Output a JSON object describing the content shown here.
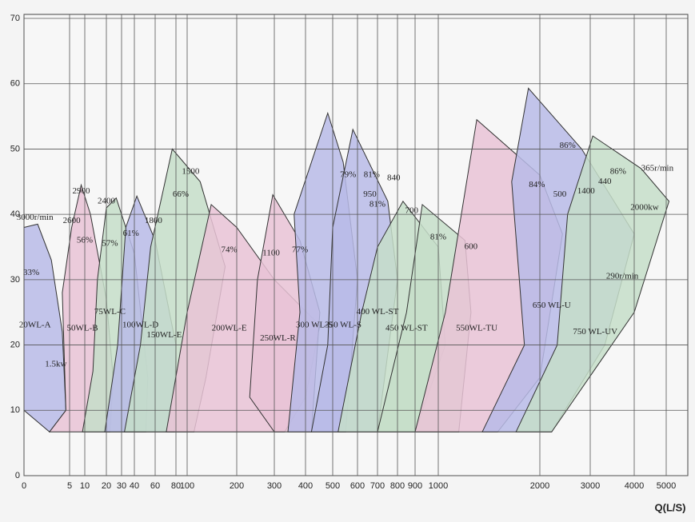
{
  "chart_data": {
    "type": "pump-map",
    "xlabel": "Q(L/S)",
    "xticks": [
      0,
      5,
      10,
      20,
      30,
      40,
      60,
      80,
      100,
      200,
      300,
      400,
      500,
      600,
      700,
      800,
      900,
      1000,
      2000,
      3000,
      4000,
      5000
    ],
    "ylim": [
      0,
      70
    ],
    "yticks": [
      0,
      10,
      20,
      30,
      40,
      50,
      60,
      70
    ],
    "grid": true,
    "regions": [
      {
        "name": "20WL-A",
        "color": "#b9bbe8",
        "label_at": [
          1.2,
          23
        ],
        "outline": [
          [
            0,
            38
          ],
          [
            1.5,
            38.5
          ],
          [
            3,
            33
          ],
          [
            4.2,
            22
          ],
          [
            4.6,
            10
          ],
          [
            2.8,
            6.7
          ],
          [
            0,
            10
          ]
        ]
      },
      {
        "name": "50WL-B",
        "color": "#e9c3d6",
        "label_at": [
          9,
          22.5
        ],
        "outline": [
          [
            2.8,
            6.7
          ],
          [
            4.6,
            10
          ],
          [
            4.2,
            28
          ],
          [
            5.5,
            38
          ],
          [
            8.5,
            44.5
          ],
          [
            12,
            40
          ],
          [
            20,
            27
          ],
          [
            24,
            15
          ],
          [
            22,
            6.7
          ]
        ]
      },
      {
        "name": "75WL-C",
        "color": "#c6dec9",
        "label_at": [
          22,
          25
        ],
        "outline": [
          [
            9,
            6.7
          ],
          [
            13,
            16
          ],
          [
            15,
            30
          ],
          [
            20,
            41
          ],
          [
            26,
            42.5
          ],
          [
            40,
            34
          ],
          [
            52,
            15
          ],
          [
            50,
            6.7
          ]
        ]
      },
      {
        "name": "100WL-D",
        "color": "#b9bbe8",
        "label_at": [
          45,
          23
        ],
        "outline": [
          [
            19,
            6.7
          ],
          [
            27,
            20
          ],
          [
            33,
            38
          ],
          [
            42,
            42.8
          ],
          [
            60,
            36
          ],
          [
            80,
            20
          ],
          [
            78,
            6.7
          ]
        ]
      },
      {
        "name": "150WL-E",
        "color": "#c6dec9",
        "label_at": [
          68,
          21.5
        ],
        "outline": [
          [
            32,
            6.7
          ],
          [
            45,
            20
          ],
          [
            55,
            35
          ],
          [
            76,
            50
          ],
          [
            120,
            45
          ],
          [
            170,
            32
          ],
          [
            130,
            15
          ],
          [
            110,
            6.7
          ]
        ]
      },
      {
        "name": "200WL-E",
        "color": "#e9c3d6",
        "label_at": [
          180,
          22.5
        ],
        "outline": [
          [
            70,
            6.7
          ],
          [
            100,
            25
          ],
          [
            140,
            41.5
          ],
          [
            200,
            38
          ],
          [
            300,
            30
          ],
          [
            450,
            23
          ],
          [
            400,
            12
          ],
          [
            330,
            6.7
          ]
        ]
      },
      {
        "name": "250WL-R",
        "color": "#e9c3d6",
        "label_at": [
          310,
          21
        ],
        "outline": [
          [
            230,
            12
          ],
          [
            250,
            30
          ],
          [
            295,
            43
          ],
          [
            380,
            36
          ],
          [
            450,
            25
          ],
          [
            420,
            6.7
          ],
          [
            300,
            6.7
          ]
        ]
      },
      {
        "name": "300 WL-S",
        "color": "#b9bbe8",
        "label_at": [
          430,
          23
        ],
        "outline": [
          [
            340,
            6.7
          ],
          [
            380,
            25
          ],
          [
            360,
            40
          ],
          [
            480,
            55.5
          ],
          [
            540,
            48
          ],
          [
            600,
            30
          ],
          [
            550,
            6.7
          ]
        ]
      },
      {
        "name": "350 WL-S",
        "color": "#b9bbe8",
        "label_at": [
          540,
          23
        ],
        "outline": [
          [
            420,
            6.7
          ],
          [
            480,
            20
          ],
          [
            500,
            38
          ],
          [
            580,
            53
          ],
          [
            750,
            42
          ],
          [
            800,
            30
          ],
          [
            700,
            6.7
          ]
        ]
      },
      {
        "name": "400 WL-ST",
        "color": "#c6dec9",
        "label_at": [
          700,
          25
        ],
        "outline": [
          [
            520,
            6.7
          ],
          [
            620,
            25
          ],
          [
            700,
            35
          ],
          [
            830,
            42
          ],
          [
            1000,
            35
          ],
          [
            1050,
            20
          ],
          [
            900,
            6.7
          ]
        ]
      },
      {
        "name": "450 WL-ST",
        "color": "#c6dec9",
        "label_at": [
          850,
          22.5
        ],
        "outline": [
          [
            700,
            6.7
          ],
          [
            850,
            25
          ],
          [
            930,
            41.5
          ],
          [
            1200,
            36
          ],
          [
            1250,
            25
          ],
          [
            1150,
            6.7
          ]
        ]
      },
      {
        "name": "550WL-TU",
        "color": "#e9c3d6",
        "label_at": [
          1300,
          22.5
        ],
        "outline": [
          [
            900,
            6.7
          ],
          [
            1050,
            25
          ],
          [
            1300,
            54.5
          ],
          [
            2000,
            46
          ],
          [
            2400,
            37
          ],
          [
            2000,
            15
          ],
          [
            1500,
            6.7
          ]
        ]
      },
      {
        "name": "650 WL-U",
        "color": "#b9bbe8",
        "label_at": [
          2200,
          26
        ],
        "outline": [
          [
            1350,
            6.7
          ],
          [
            1800,
            20
          ],
          [
            1650,
            45
          ],
          [
            1850,
            59.3
          ],
          [
            2800,
            50
          ],
          [
            4000,
            37
          ],
          [
            3300,
            20
          ],
          [
            2200,
            6.7
          ]
        ]
      },
      {
        "name": "750 WL-UV",
        "color": "#c6dec9",
        "label_at": [
          3100,
          22
        ],
        "outline": [
          [
            1700,
            6.7
          ],
          [
            2300,
            20
          ],
          [
            2500,
            40
          ],
          [
            3050,
            52
          ],
          [
            4200,
            47
          ],
          [
            5100,
            42
          ],
          [
            4000,
            25
          ],
          [
            2200,
            6.7
          ]
        ]
      }
    ],
    "annotations": [
      {
        "text": "3000r/min",
        "at": [
          1.2,
          39.5
        ]
      },
      {
        "text": "33%",
        "at": [
          0.8,
          31
        ]
      },
      {
        "text": "1.5kw",
        "at": [
          3.5,
          17
        ]
      },
      {
        "text": "2900",
        "at": [
          8.5,
          43.5
        ]
      },
      {
        "text": "2600",
        "at": [
          5.5,
          39
        ]
      },
      {
        "text": "56%",
        "at": [
          10,
          36
        ]
      },
      {
        "text": "2400",
        "at": [
          20,
          42
        ]
      },
      {
        "text": "57%",
        "at": [
          22,
          35.5
        ]
      },
      {
        "text": "61%",
        "at": [
          37,
          37
        ]
      },
      {
        "text": "1800",
        "at": [
          58,
          39
        ]
      },
      {
        "text": "1500",
        "at": [
          105,
          46.5
        ]
      },
      {
        "text": "66%",
        "at": [
          88,
          43
        ]
      },
      {
        "text": "74%",
        "at": [
          180,
          34.5
        ]
      },
      {
        "text": "1100",
        "at": [
          290,
          34
        ]
      },
      {
        "text": "77%",
        "at": [
          380,
          34.5
        ]
      },
      {
        "text": "79%",
        "at": [
          560,
          46
        ]
      },
      {
        "text": "81%",
        "at": [
          670,
          46
        ]
      },
      {
        "text": "950",
        "at": [
          660,
          43
        ]
      },
      {
        "text": "840",
        "at": [
          780,
          45.5
        ]
      },
      {
        "text": "81%",
        "at": [
          700,
          41.5
        ]
      },
      {
        "text": "700",
        "at": [
          880,
          40.5
        ]
      },
      {
        "text": "81%",
        "at": [
          1000,
          36.5
        ]
      },
      {
        "text": "600",
        "at": [
          1250,
          35
        ]
      },
      {
        "text": "84%",
        "at": [
          1960,
          44.5
        ]
      },
      {
        "text": "86%",
        "at": [
          2500,
          50.5
        ]
      },
      {
        "text": "500",
        "at": [
          2350,
          43
        ]
      },
      {
        "text": "1400",
        "at": [
          2900,
          43.5
        ]
      },
      {
        "text": "86%",
        "at": [
          3600,
          46.5
        ]
      },
      {
        "text": "440",
        "at": [
          3300,
          45
        ]
      },
      {
        "text": "365r/min",
        "at": [
          4700,
          47
        ]
      },
      {
        "text": "2000kw",
        "at": [
          4300,
          41
        ]
      },
      {
        "text": "290r/min",
        "at": [
          3700,
          30.5
        ]
      }
    ]
  }
}
